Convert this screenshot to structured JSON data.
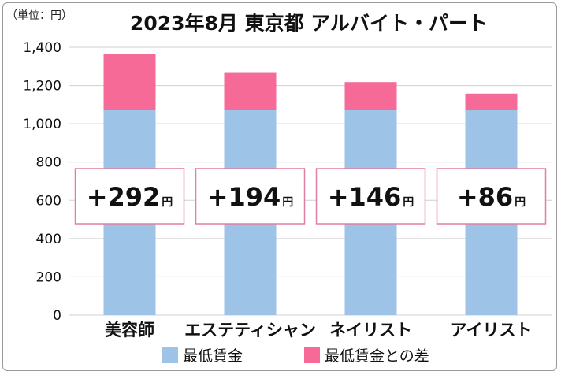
{
  "chart_data": {
    "type": "bar",
    "stacked": true,
    "title": "2023年8月 東京都 アルバイト・パート",
    "unit_label": "（単位：円）",
    "categories": [
      "美容師",
      "エステティシャン",
      "ネイリスト",
      "アイリスト"
    ],
    "series": [
      {
        "name": "最低賃金",
        "values": [
          1072,
          1072,
          1072,
          1072
        ],
        "color": "#9dc3e6"
      },
      {
        "name": "最低賃金との差",
        "values": [
          292,
          194,
          146,
          86
        ],
        "color": "#f56a97"
      }
    ],
    "difference_labels": [
      {
        "sign": "+",
        "value": "292",
        "unit": "円"
      },
      {
        "sign": "+",
        "value": "194",
        "unit": "円"
      },
      {
        "sign": "+",
        "value": "146",
        "unit": "円"
      },
      {
        "sign": "+",
        "value": "86",
        "unit": "円"
      }
    ],
    "ylim": [
      0,
      1400
    ],
    "yticks": [
      "0",
      "200",
      "400",
      "600",
      "800",
      "1,000",
      "1,200",
      "1,400"
    ],
    "ytick_values": [
      0,
      200,
      400,
      600,
      800,
      1000,
      1200,
      1400
    ],
    "grid": true,
    "legend": "bottom"
  }
}
